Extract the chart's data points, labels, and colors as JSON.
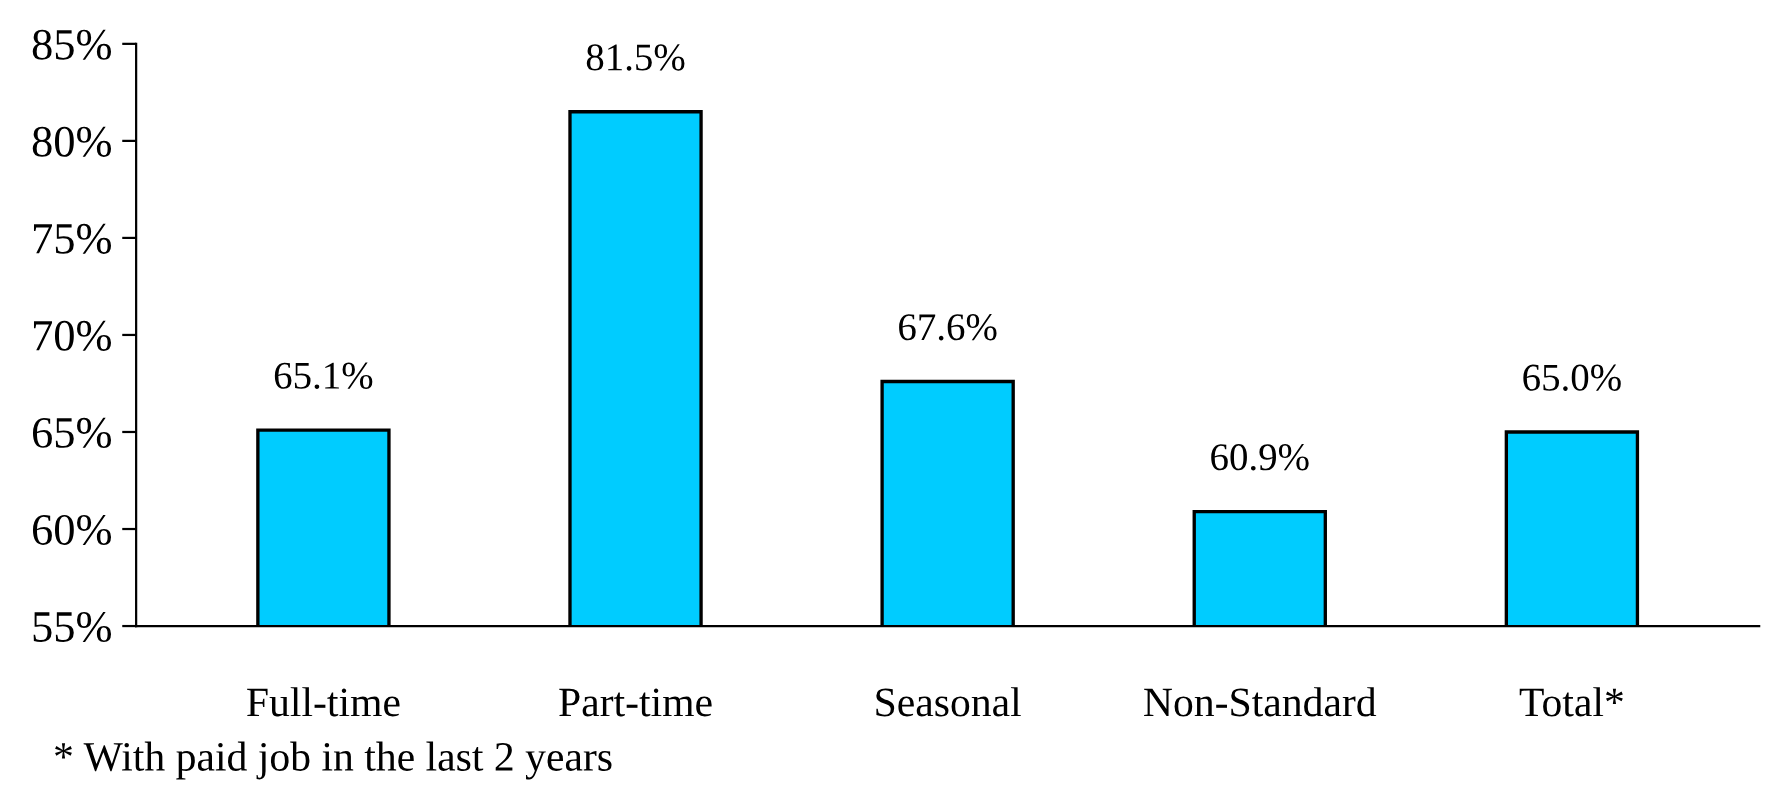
{
  "chart_data": {
    "type": "bar",
    "categories": [
      "Full-time",
      "Part-time",
      "Seasonal",
      "Non-Standard",
      "Total*"
    ],
    "values": [
      65.1,
      81.5,
      67.6,
      60.9,
      65.0
    ],
    "value_labels": [
      "65.1%",
      "81.5%",
      "67.6%",
      "60.9%",
      "65.0%"
    ],
    "color": "#00ccff",
    "ylim": [
      55,
      85
    ],
    "yticks": [
      {
        "value": 55,
        "label": "55%"
      },
      {
        "value": 60,
        "label": "60%"
      },
      {
        "value": 65,
        "label": "65%"
      },
      {
        "value": 70,
        "label": "70%"
      },
      {
        "value": 75,
        "label": "75%"
      },
      {
        "value": 80,
        "label": "80%"
      },
      {
        "value": 85,
        "label": "85%"
      }
    ],
    "grid": false,
    "legend": false,
    "annotations": [
      "* With paid job in the last 2 years"
    ]
  }
}
